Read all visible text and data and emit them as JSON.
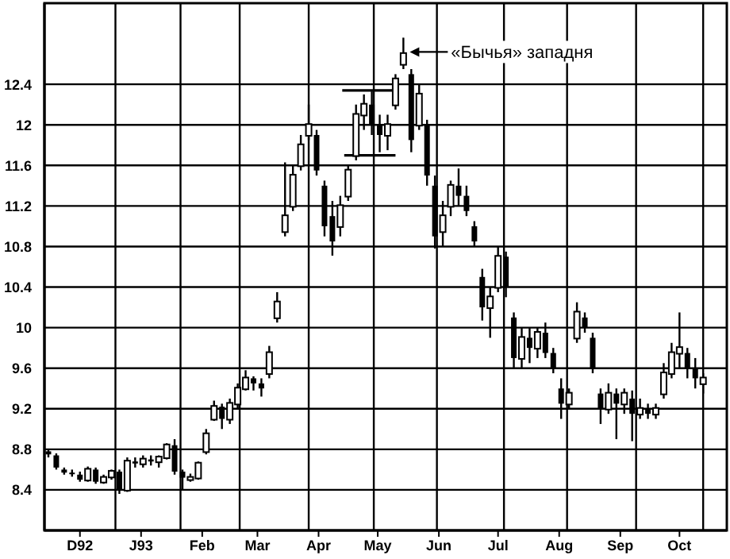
{
  "chart_data": {
    "type": "candlestick",
    "x": [
      "1992-11-15",
      "1992-11-19",
      "1992-11-23",
      "1992-11-27",
      "1992-12-01",
      "1992-12-05",
      "1992-12-09",
      "1992-12-13",
      "1992-12-17",
      "1992-12-21",
      "1992-12-25",
      "1992-12-29",
      "1993-01-02",
      "1993-01-06",
      "1993-01-10",
      "1993-01-14",
      "1993-01-18",
      "1993-01-22",
      "1993-01-26",
      "1993-01-30",
      "1993-02-03",
      "1993-02-07",
      "1993-02-11",
      "1993-02-15",
      "1993-02-19",
      "1993-02-23",
      "1993-02-27",
      "1993-03-03",
      "1993-03-07",
      "1993-03-11",
      "1993-03-15",
      "1993-03-19",
      "1993-03-23",
      "1993-03-27",
      "1993-03-31",
      "1993-04-04",
      "1993-04-08",
      "1993-04-12",
      "1993-04-16",
      "1993-04-20",
      "1993-04-24",
      "1993-04-28",
      "1993-05-02",
      "1993-05-06",
      "1993-05-10",
      "1993-05-14",
      "1993-05-18",
      "1993-05-22",
      "1993-05-26",
      "1993-05-30",
      "1993-06-03",
      "1993-06-07",
      "1993-06-11",
      "1993-06-15",
      "1993-06-19",
      "1993-06-23",
      "1993-06-27",
      "1993-07-01",
      "1993-07-05",
      "1993-07-09",
      "1993-07-13",
      "1993-07-17",
      "1993-07-21",
      "1993-07-25",
      "1993-07-29",
      "1993-08-02",
      "1993-08-06",
      "1993-08-10",
      "1993-08-14",
      "1993-08-18",
      "1993-08-22",
      "1993-08-26",
      "1993-08-30",
      "1993-09-03",
      "1993-09-07",
      "1993-09-11",
      "1993-09-15",
      "1993-09-19",
      "1993-09-23",
      "1993-09-27",
      "1993-10-01",
      "1993-10-05",
      "1993-10-09",
      "1993-10-13"
    ],
    "ohlc": [
      [
        8.78,
        8.8,
        8.72,
        8.75
      ],
      [
        8.74,
        8.76,
        8.6,
        8.62
      ],
      [
        8.6,
        8.62,
        8.55,
        8.57
      ],
      [
        8.57,
        8.6,
        8.53,
        8.56
      ],
      [
        8.55,
        8.58,
        8.48,
        8.5
      ],
      [
        8.5,
        8.63,
        8.48,
        8.6
      ],
      [
        8.6,
        8.62,
        8.46,
        8.48
      ],
      [
        8.48,
        8.55,
        8.46,
        8.52
      ],
      [
        8.53,
        8.6,
        8.5,
        8.58
      ],
      [
        8.58,
        8.6,
        8.36,
        8.4
      ],
      [
        8.4,
        8.72,
        8.38,
        8.68
      ],
      [
        8.68,
        8.72,
        8.62,
        8.66
      ],
      [
        8.66,
        8.74,
        8.62,
        8.7
      ],
      [
        8.7,
        8.74,
        8.64,
        8.68
      ],
      [
        8.68,
        8.74,
        8.62,
        8.72
      ],
      [
        8.72,
        8.86,
        8.7,
        8.84
      ],
      [
        8.84,
        8.9,
        8.55,
        8.58
      ],
      [
        8.58,
        8.6,
        8.4,
        8.52
      ],
      [
        8.52,
        8.56,
        8.48,
        8.52
      ],
      [
        8.52,
        8.68,
        8.5,
        8.66
      ],
      [
        8.78,
        9.0,
        8.75,
        8.95
      ],
      [
        9.1,
        9.28,
        9.08,
        9.22
      ],
      [
        9.22,
        9.25,
        9.0,
        9.1
      ],
      [
        9.1,
        9.3,
        9.05,
        9.25
      ],
      [
        9.25,
        9.45,
        9.2,
        9.4
      ],
      [
        9.4,
        9.58,
        9.38,
        9.5
      ],
      [
        9.5,
        9.52,
        9.38,
        9.45
      ],
      [
        9.45,
        9.5,
        9.32,
        9.4
      ],
      [
        9.55,
        9.82,
        9.5,
        9.75
      ],
      [
        10.1,
        10.35,
        10.05,
        10.25
      ],
      [
        10.95,
        11.63,
        10.9,
        11.1
      ],
      [
        11.2,
        11.6,
        11.15,
        11.5
      ],
      [
        11.6,
        11.9,
        11.55,
        11.8
      ],
      [
        11.9,
        12.2,
        11.85,
        12.0
      ],
      [
        11.9,
        11.95,
        11.5,
        11.55
      ],
      [
        11.4,
        11.45,
        10.9,
        11.0
      ],
      [
        11.1,
        11.25,
        10.71,
        10.85
      ],
      [
        11.0,
        11.3,
        10.9,
        11.2
      ],
      [
        11.3,
        11.6,
        11.25,
        11.55
      ],
      [
        11.7,
        12.2,
        11.65,
        12.1
      ],
      [
        12.1,
        12.3,
        11.95,
        12.2
      ],
      [
        12.2,
        12.33,
        11.9,
        12.0
      ],
      [
        12.0,
        12.1,
        11.73,
        11.9
      ],
      [
        11.9,
        12.1,
        11.75,
        12.0
      ],
      [
        12.2,
        12.5,
        12.15,
        12.45
      ],
      [
        12.6,
        12.86,
        12.55,
        12.7
      ],
      [
        12.5,
        12.55,
        11.73,
        11.85
      ],
      [
        12.0,
        12.4,
        11.95,
        12.3
      ],
      [
        12.0,
        12.05,
        11.4,
        11.5
      ],
      [
        11.4,
        11.5,
        10.78,
        10.9
      ],
      [
        10.95,
        11.25,
        10.8,
        11.1
      ],
      [
        11.2,
        11.45,
        11.1,
        11.4
      ],
      [
        11.4,
        11.57,
        11.2,
        11.3
      ],
      [
        11.3,
        11.4,
        11.1,
        11.15
      ],
      [
        11.0,
        11.05,
        10.8,
        10.85
      ],
      [
        10.5,
        10.58,
        10.07,
        10.2
      ],
      [
        10.2,
        10.4,
        9.9,
        10.3
      ],
      [
        10.4,
        10.8,
        10.35,
        10.7
      ],
      [
        10.7,
        10.75,
        10.3,
        10.4
      ],
      [
        10.1,
        10.15,
        9.6,
        9.7
      ],
      [
        9.7,
        10.0,
        9.6,
        9.9
      ],
      [
        9.9,
        10.0,
        9.65,
        9.8
      ],
      [
        9.8,
        10.0,
        9.7,
        9.95
      ],
      [
        9.95,
        10.05,
        9.7,
        9.75
      ],
      [
        9.75,
        9.8,
        9.55,
        9.6
      ],
      [
        9.4,
        9.5,
        9.1,
        9.25
      ],
      [
        9.25,
        9.4,
        9.2,
        9.35
      ],
      [
        9.9,
        10.25,
        9.85,
        10.15
      ],
      [
        10.1,
        10.15,
        9.95,
        10.0
      ],
      [
        9.9,
        9.95,
        9.55,
        9.6
      ],
      [
        9.35,
        9.4,
        9.05,
        9.2
      ],
      [
        9.2,
        9.45,
        9.15,
        9.35
      ],
      [
        9.35,
        9.4,
        8.9,
        9.25
      ],
      [
        9.25,
        9.4,
        9.15,
        9.35
      ],
      [
        9.3,
        9.38,
        8.88,
        9.15
      ],
      [
        9.15,
        9.3,
        9.1,
        9.2
      ],
      [
        9.2,
        9.25,
        9.1,
        9.15
      ],
      [
        9.15,
        9.25,
        9.1,
        9.2
      ],
      [
        9.35,
        9.65,
        9.3,
        9.55
      ],
      [
        9.55,
        9.85,
        9.5,
        9.75
      ],
      [
        9.75,
        10.15,
        9.6,
        9.8
      ],
      [
        9.75,
        9.8,
        9.5,
        9.6
      ],
      [
        9.6,
        9.7,
        9.4,
        9.5
      ],
      [
        9.45,
        9.55,
        9.35,
        9.5
      ]
    ],
    "series": [
      {
        "type": "line",
        "color": "#000000",
        "x": [
          "1993-04-13",
          "1993-05-10"
        ],
        "values": [
          12.34,
          12.34
        ]
      },
      {
        "type": "line",
        "color": "#000000",
        "x": [
          "1993-04-14",
          "1993-05-10"
        ],
        "values": [
          11.7,
          11.7
        ]
      }
    ],
    "xlim": [
      "1992-11-13",
      "1993-10-25"
    ],
    "xticks": [
      {
        "value": "1992-12-01",
        "label": "D92"
      },
      {
        "value": "1992-12-19",
        "label": null
      },
      {
        "value": "1993-01-01",
        "label": "J93"
      },
      {
        "value": "1993-01-21",
        "label": null
      },
      {
        "value": "1993-02-01",
        "label": "Feb"
      },
      {
        "value": "1993-02-20",
        "label": null
      },
      {
        "value": "1993-03-01",
        "label": "Mar"
      },
      {
        "value": "1993-03-27",
        "label": null
      },
      {
        "value": "1993-04-01",
        "label": "Apr"
      },
      {
        "value": "1993-04-29",
        "label": null
      },
      {
        "value": "1993-05-01",
        "label": "May"
      },
      {
        "value": "1993-05-31",
        "label": null
      },
      {
        "value": "1993-06-01",
        "label": "Jun"
      },
      {
        "value": "1993-07-01",
        "label": "Jul"
      },
      {
        "value": "1993-07-04",
        "label": null
      },
      {
        "value": "1993-08-01",
        "label": "Aug"
      },
      {
        "value": "1993-08-05",
        "label": null
      },
      {
        "value": "1993-09-01",
        "label": "Sep"
      },
      {
        "value": "1993-09-09",
        "label": null
      },
      {
        "value": "1993-10-01",
        "label": "Oct"
      },
      {
        "value": "1993-10-13",
        "label": null
      }
    ],
    "ylim": [
      8.0,
      13.2
    ],
    "yticks": [
      8.4,
      8.8,
      9.2,
      9.6,
      10.0,
      10.4,
      10.8,
      11.2,
      11.6,
      12.0,
      12.4
    ],
    "grid": true,
    "annotations": [
      {
        "text": "«Бычья» западня",
        "x": "1993-05-14",
        "y": 12.86
      }
    ]
  }
}
